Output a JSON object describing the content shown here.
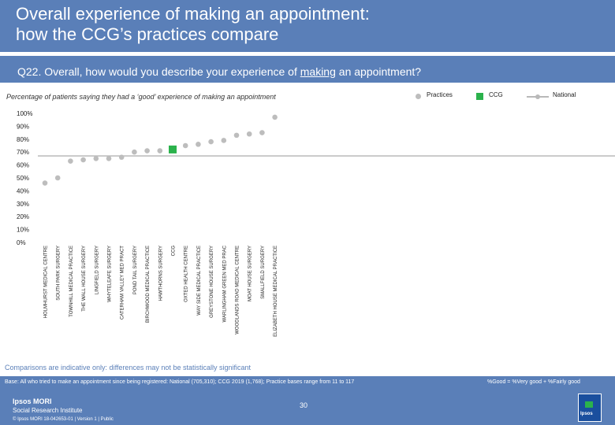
{
  "header": {
    "title_line1": "Overall experience of making an appointment:",
    "title_line2": "how the CCG’s practices compare"
  },
  "question": {
    "prefix": "Q22. Overall, how would you describe your experience of ",
    "underlined": "making",
    "suffix": " an appointment?"
  },
  "subtitle": "Percentage of patients saying they had a ‘good’ experience of making an appointment",
  "legend": {
    "practices": "Practices",
    "ccg": "CCG",
    "national": "National"
  },
  "colors": {
    "brand": "#5a7fb8",
    "practice_marker": "#bdbdbd",
    "ccg_marker": "#2bb24c",
    "national_line": "#b9b9b9"
  },
  "chart_data": {
    "type": "scatter",
    "title": "Percentage of patients saying they had a ‘good’ experience of making an appointment",
    "ylim": [
      0,
      100
    ],
    "yticks": [
      "0%",
      "10%",
      "20%",
      "30%",
      "40%",
      "50%",
      "60%",
      "70%",
      "80%",
      "90%",
      "100%"
    ],
    "national": 67,
    "categories": [
      "HOLMHURST MEDICAL CENTRE",
      "SOUTH PARK SURGERY",
      "TOWNHILL MEDICAL PRACTICE",
      "THE WALL HOUSE SURGERY",
      "LINGFIELD SURGERY",
      "WHYTELEAFE SURGERY",
      "CATERHAM VALLEY MED PRACT",
      "POND TAIL SURGERY",
      "BIRCHWOOD MEDICAL PRACTICE",
      "HAWTHORNS SURGERY",
      "CCG",
      "OXTED HEALTH CENTRE",
      "WAY SIDE MEDICAL PRACTICE",
      "GREYSTONE HOUSE SURGERY",
      "WARLINGHAM GREEN MED PRAC",
      "WOODLANDS ROAD MEDICAL CENTRE",
      "MOAT HOUSE SURGERY",
      "SMALLFIELD SURGERY",
      "ELIZABETH HOUSE MEDICAL PRACTICE"
    ],
    "values": [
      46,
      50,
      63,
      64,
      65,
      65,
      66,
      70,
      71,
      71,
      72,
      75,
      76,
      78,
      79,
      83,
      84,
      85,
      97
    ],
    "ccg_index": 10
  },
  "footnote": "Comparisons are indicative only: differences may not be statistically significant",
  "base_text": "Base: All who tried to make an appointment since being registered: National (705,310); CCG 2019 (1,768); Practice bases range from 11 to 117",
  "good_note": "%Good = %Very good + %Fairly good",
  "page_number": "30",
  "brand": {
    "name": "Ipsos MORI",
    "sub": "Social Research Institute",
    "copyright": "© Ipsos MORI    18-042653-01 | Version 1 | Public",
    "logo_text": "Ipsos"
  }
}
